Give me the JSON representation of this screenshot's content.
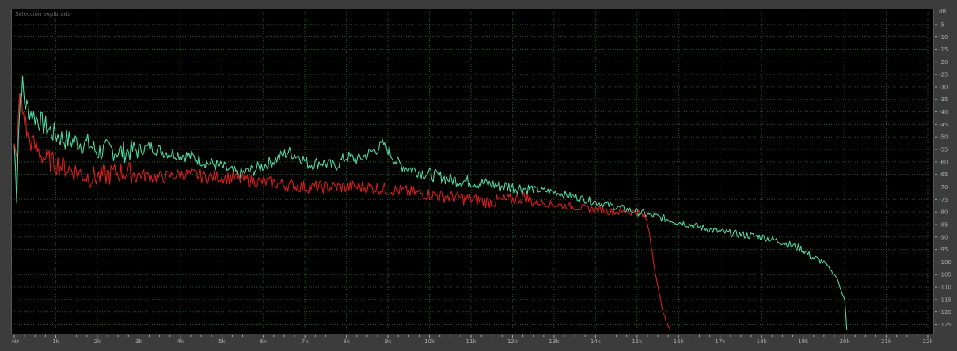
{
  "panel": {
    "title": "Selección explorada",
    "db_unit": "dB",
    "hz_unit": "Hz"
  },
  "colors": {
    "background": "#000000",
    "frame": "#3c3c3c",
    "grid": "#1f5a1f",
    "series_green": "#4fd9a0",
    "series_red": "#d81e1e"
  },
  "chart_data": {
    "type": "line",
    "title": "Selección explorada",
    "xlabel": "Hz",
    "ylabel": "dB",
    "xlim": [
      0,
      22000
    ],
    "ylim": [
      -128,
      0
    ],
    "grid": true,
    "x_ticks": [
      "1k",
      "2k",
      "3k",
      "4k",
      "5k",
      "6k",
      "7k",
      "8k",
      "9k",
      "10k",
      "11k",
      "12k",
      "13k",
      "14k",
      "15k",
      "16k",
      "17k",
      "18k",
      "19k",
      "20k",
      "21k",
      "22k"
    ],
    "y_ticks": [
      "-5",
      "-10",
      "-15",
      "-20",
      "-25",
      "-30",
      "-35",
      "-40",
      "-45",
      "-50",
      "-55",
      "-60",
      "-65",
      "-70",
      "-75",
      "-80",
      "-85",
      "-90",
      "-95",
      "-100",
      "-105",
      "-110",
      "-115",
      "-120",
      "-125"
    ],
    "series": [
      {
        "color": "#4fd9a0",
        "x": [
          0,
          60,
          100,
          150,
          200,
          250,
          300,
          400,
          500,
          700,
          900,
          1200,
          1500,
          1800,
          2000,
          2300,
          2600,
          3000,
          3300,
          3600,
          4000,
          4300,
          4600,
          5000,
          5400,
          5800,
          6200,
          6600,
          6900,
          7100,
          7400,
          7700,
          8000,
          8300,
          8600,
          8900,
          9000,
          9200,
          9400,
          9600,
          9800,
          10000,
          10500,
          11000,
          11500,
          12000,
          12500,
          13000,
          13500,
          14000,
          14500,
          15000,
          15500,
          16000,
          16500,
          17000,
          17500,
          18000,
          18500,
          19000,
          19200,
          19500,
          19800,
          20000,
          20050
        ],
        "y": [
          -53,
          -73,
          -48,
          -33,
          -29,
          -36,
          -38,
          -40,
          -42,
          -45,
          -48,
          -51,
          -52,
          -53,
          -56,
          -55,
          -56,
          -55,
          -54,
          -56,
          -57,
          -58,
          -60,
          -62,
          -65,
          -63,
          -60,
          -56,
          -58,
          -61,
          -60,
          -62,
          -58,
          -59,
          -56,
          -53,
          -55,
          -60,
          -62,
          -63,
          -64,
          -65,
          -67,
          -68,
          -69,
          -70,
          -71,
          -72,
          -74,
          -76,
          -78,
          -80,
          -82,
          -84,
          -86,
          -88,
          -89,
          -90,
          -92,
          -95,
          -98,
          -100,
          -106,
          -115,
          -127
        ]
      },
      {
        "color": "#d81e1e",
        "x": [
          0,
          60,
          100,
          150,
          200,
          250,
          300,
          400,
          500,
          700,
          900,
          1200,
          1500,
          1800,
          2000,
          2300,
          2600,
          3000,
          3300,
          3600,
          4000,
          4300,
          4600,
          5000,
          5500,
          6000,
          6500,
          7000,
          7500,
          8000,
          8500,
          9000,
          9500,
          10000,
          10500,
          11000,
          11500,
          12000,
          12300,
          12500,
          13000,
          13500,
          14000,
          14500,
          15000,
          15200,
          15300,
          15400,
          15500,
          15600,
          15700,
          15800
        ],
        "y": [
          -55,
          -60,
          -38,
          -34,
          -40,
          -42,
          -48,
          -52,
          -54,
          -58,
          -60,
          -62,
          -64,
          -66,
          -66,
          -65,
          -64,
          -65,
          -66,
          -66,
          -65,
          -65,
          -66,
          -66,
          -67,
          -68,
          -69,
          -70,
          -70,
          -70,
          -70,
          -71,
          -72,
          -73,
          -74,
          -75,
          -76,
          -75,
          -74,
          -76,
          -77,
          -78,
          -79,
          -80,
          -80,
          -82,
          -88,
          -100,
          -110,
          -118,
          -124,
          -127
        ]
      }
    ]
  }
}
